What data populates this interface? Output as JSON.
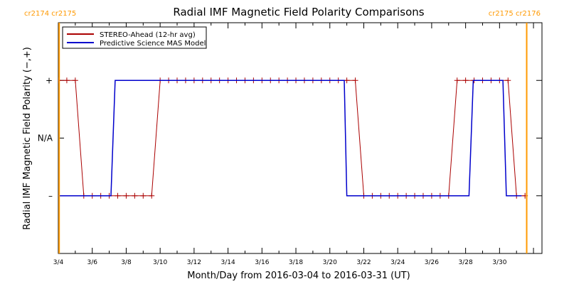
{
  "chart_data": {
    "type": "line",
    "title": "Radial IMF Magnetic Field Polarity Comparisons",
    "xlabel": "Month/Day from 2016-03-04 to 2016-03-31 (UT)",
    "ylabel": "Radial IMF Magnetic Field Polarity (−,+)",
    "x_start_date": "2016-03-04",
    "xlim_days": [
      0,
      28.5
    ],
    "y_levels": [
      -1,
      0,
      1
    ],
    "ylim": [
      -2,
      2
    ],
    "x_ticks": [
      {
        "day": 0,
        "label": "3/4"
      },
      {
        "day": 2,
        "label": "3/6"
      },
      {
        "day": 4,
        "label": "3/8"
      },
      {
        "day": 6,
        "label": "3/10"
      },
      {
        "day": 8,
        "label": "3/12"
      },
      {
        "day": 10,
        "label": "3/14"
      },
      {
        "day": 12,
        "label": "3/16"
      },
      {
        "day": 14,
        "label": "3/18"
      },
      {
        "day": 16,
        "label": "3/20"
      },
      {
        "day": 18,
        "label": "3/22"
      },
      {
        "day": 20,
        "label": "3/24"
      },
      {
        "day": 22,
        "label": "3/26"
      },
      {
        "day": 24,
        "label": "3/28"
      },
      {
        "day": 26,
        "label": "3/30"
      }
    ],
    "y_ticks": [
      {
        "value": 1,
        "label": "+"
      },
      {
        "value": 0,
        "label": "N/A"
      },
      {
        "value": -1,
        "label": "–"
      }
    ],
    "legend_position": "top-left",
    "carrington_markers": [
      {
        "day": 0.05,
        "label_left": "cr2174",
        "label_right": "cr2175",
        "label_side": "left"
      },
      {
        "day": 27.6,
        "label_left": "cr2175",
        "label_right": "cr2176",
        "label_side": "right"
      }
    ],
    "series": [
      {
        "name": "STEREO-Ahead (12-hr avg)",
        "color": "#aa0000",
        "marker": "+",
        "x": [
          0,
          0.5,
          1,
          1.5,
          2,
          2.5,
          3,
          3.5,
          4,
          4.5,
          5,
          5.5,
          6,
          6.5,
          7,
          7.5,
          8,
          8.5,
          9,
          9.5,
          10,
          10.5,
          11,
          11.5,
          12,
          12.5,
          13,
          13.5,
          14,
          14.5,
          15,
          15.5,
          16,
          16.5,
          17,
          17.5,
          18,
          18.5,
          19,
          19.5,
          20,
          20.5,
          21,
          21.5,
          22,
          22.5,
          23,
          23.5,
          24,
          24.5,
          25,
          25.5,
          26,
          26.5,
          27,
          27.5
        ],
        "y": [
          1,
          1,
          1,
          -1,
          -1,
          -1,
          -1,
          -1,
          -1,
          -1,
          -1,
          -1,
          1,
          1,
          1,
          1,
          1,
          1,
          1,
          1,
          1,
          1,
          1,
          1,
          1,
          1,
          1,
          1,
          1,
          1,
          1,
          1,
          1,
          1,
          1,
          1,
          -1,
          -1,
          -1,
          -1,
          -1,
          -1,
          -1,
          -1,
          -1,
          -1,
          -1,
          1,
          1,
          1,
          1,
          1,
          1,
          1,
          -1,
          -1
        ]
      },
      {
        "name": "Predictive Science MAS Model",
        "color": "#0000cc",
        "marker": "none",
        "x": [
          0,
          3.1,
          3.35,
          16.85,
          17.0,
          24.2,
          24.45,
          26.2,
          26.4,
          27.3
        ],
        "y": [
          -1,
          -1,
          1,
          1,
          -1,
          -1,
          1,
          1,
          -1,
          -1
        ]
      }
    ]
  }
}
